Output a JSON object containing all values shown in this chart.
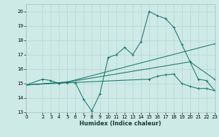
{
  "xlabel": "Humidex (Indice chaleur)",
  "xlim": [
    0,
    23
  ],
  "ylim": [
    13,
    20.5
  ],
  "yticks": [
    13,
    14,
    15,
    16,
    17,
    18,
    19,
    20
  ],
  "xticks": [
    0,
    2,
    3,
    4,
    5,
    6,
    7,
    8,
    9,
    10,
    11,
    12,
    13,
    14,
    15,
    16,
    17,
    18,
    19,
    20,
    21,
    22,
    23
  ],
  "bg_color": "#ceeae6",
  "grid_color": "#b8d8d4",
  "line_color": "#1a7a6e",
  "lines": [
    {
      "x": [
        0,
        2,
        3,
        4,
        5,
        6,
        7,
        8,
        9,
        10,
        11,
        12,
        13,
        14,
        15,
        16,
        17,
        18,
        19,
        20,
        21,
        22,
        23
      ],
      "y": [
        14.9,
        15.3,
        15.2,
        15.0,
        15.1,
        15.05,
        13.9,
        13.1,
        14.3,
        16.8,
        17.0,
        17.5,
        17.0,
        17.9,
        20.0,
        19.7,
        19.5,
        18.9,
        17.7,
        16.5,
        15.3,
        15.2,
        14.5
      ]
    },
    {
      "x": [
        0,
        5,
        23
      ],
      "y": [
        14.9,
        15.1,
        17.75
      ]
    },
    {
      "x": [
        0,
        5,
        20,
        23
      ],
      "y": [
        14.9,
        15.1,
        16.5,
        15.3
      ]
    },
    {
      "x": [
        0,
        5,
        15,
        16,
        17,
        18,
        19,
        20,
        21,
        22,
        23
      ],
      "y": [
        14.9,
        15.05,
        15.3,
        15.5,
        15.6,
        15.65,
        15.0,
        14.8,
        14.65,
        14.65,
        14.5
      ]
    }
  ]
}
